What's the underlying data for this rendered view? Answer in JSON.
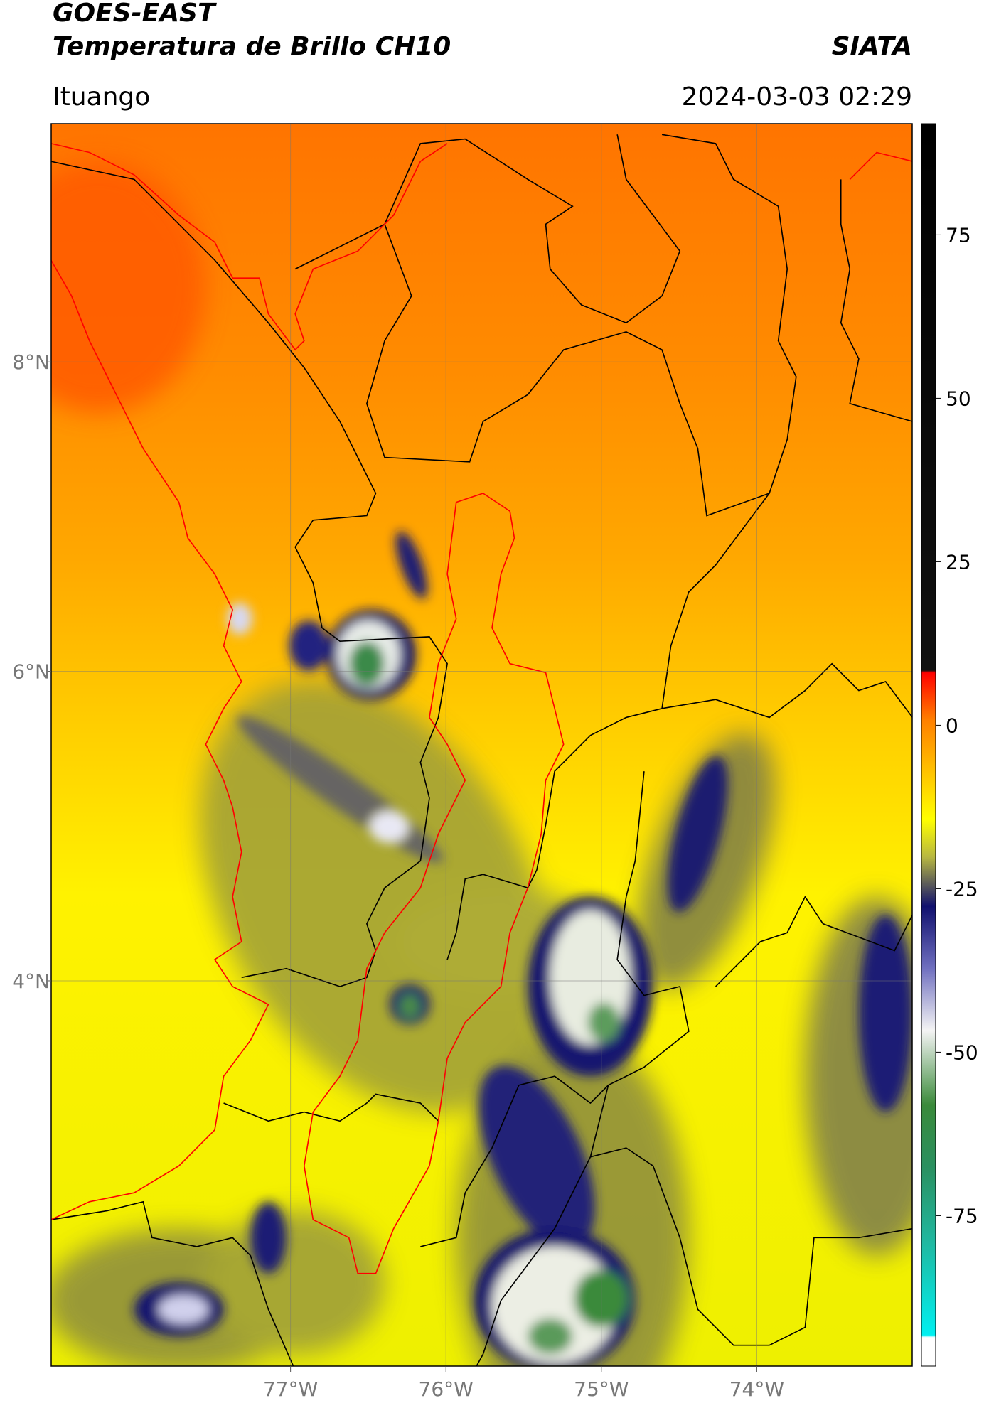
{
  "chart_data": {
    "type": "map",
    "title": "GOES-EAST",
    "subtitle": "Temperatura de Brillo CH10",
    "source": "SIATA",
    "location": "Ituango",
    "datetime": "2024-03-03 02:29",
    "xlim": [
      -78.54,
      -73.0
    ],
    "ylim": [
      1.51,
      9.54
    ],
    "xticks": [
      {
        "value": -77,
        "label": "77°W"
      },
      {
        "value": -76,
        "label": "76°W"
      },
      {
        "value": -75,
        "label": "75°W"
      },
      {
        "value": -74,
        "label": "74°W"
      }
    ],
    "yticks": [
      {
        "value": 4,
        "label": "4°N"
      },
      {
        "value": 6,
        "label": "6°N"
      },
      {
        "value": 8,
        "label": "8°N"
      }
    ],
    "grid": true,
    "colorbar": {
      "lim": [
        -98,
        92
      ],
      "ticks": [
        -75,
        -50,
        -25,
        0,
        25,
        50,
        75
      ]
    }
  }
}
